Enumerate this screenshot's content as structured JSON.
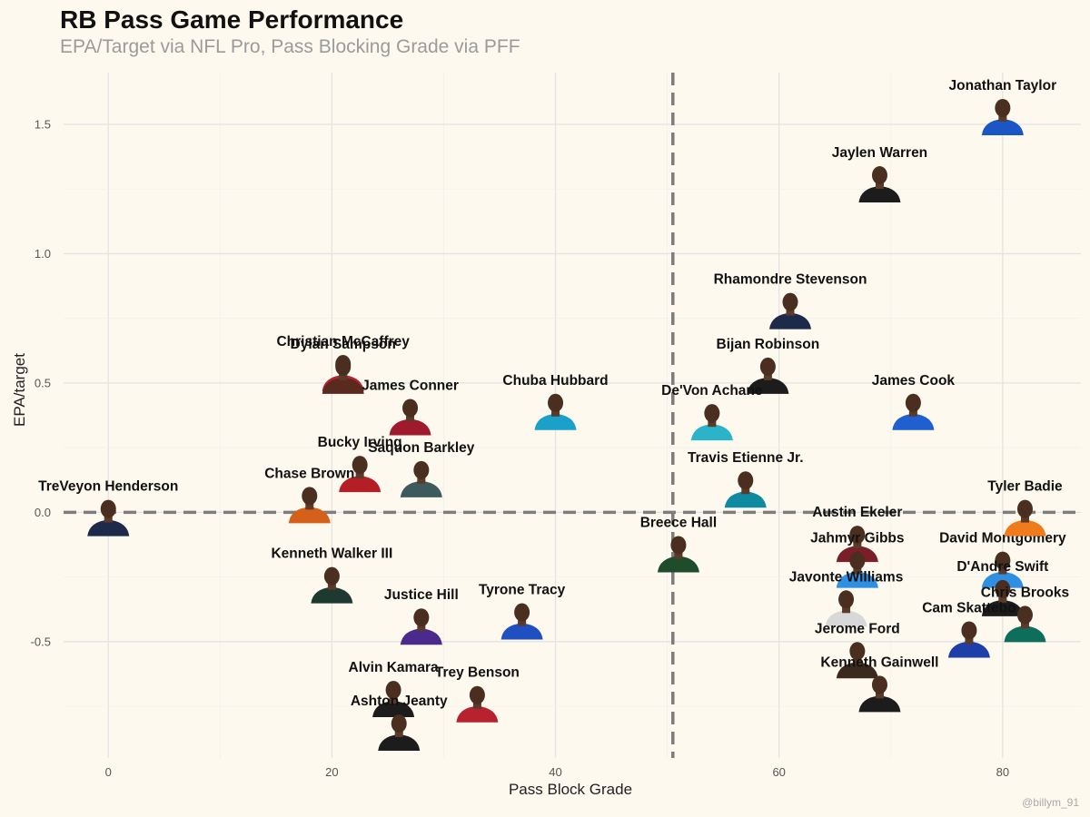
{
  "chart_data": {
    "type": "scatter",
    "title": "RB Pass Game Performance",
    "subtitle": "EPA/Target via NFL Pro, Pass Blocking Grade via PFF",
    "xlabel": "Pass Block Grade",
    "ylabel": "EPA/target",
    "xlim": [
      -4,
      87
    ],
    "ylim": [
      -0.95,
      1.7
    ],
    "xticks": [
      0,
      20,
      40,
      60,
      80
    ],
    "yticks": [
      -0.5,
      0.0,
      0.5,
      1.0,
      1.5
    ],
    "ytick_labels": [
      "-0.5",
      "0.0",
      "0.5",
      "1.0",
      "1.5"
    ],
    "reference_lines": {
      "vertical_x": 50.5,
      "horizontal_y": 0.0
    },
    "grid": true,
    "credit": "@billym_91",
    "points": [
      {
        "name": "Jonathan Taylor",
        "x": 80,
        "y": 1.5,
        "color": "#1a56c4"
      },
      {
        "name": "Jaylen Warren",
        "x": 69,
        "y": 1.24,
        "color": "#1c1c1c"
      },
      {
        "name": "Rhamondre Stevenson",
        "x": 61,
        "y": 0.75,
        "color": "#1e2a4a"
      },
      {
        "name": "Bijan Robinson",
        "x": 59,
        "y": 0.5,
        "color": "#1c1c1c"
      },
      {
        "name": "James Cook",
        "x": 72,
        "y": 0.36,
        "color": "#1f5fd0"
      },
      {
        "name": "De'Von Achane",
        "x": 54,
        "y": 0.32,
        "color": "#2bb3c9"
      },
      {
        "name": "Travis Etienne Jr.",
        "x": 57,
        "y": 0.06,
        "color": "#0f8aa0"
      },
      {
        "name": "David Montgomery",
        "x": 80,
        "y": -0.25,
        "color": "#2f8fe0"
      },
      {
        "name": "Tyler Badie",
        "x": 82,
        "y": -0.05,
        "color": "#f07b1d"
      },
      {
        "name": "D'Andre Swift",
        "x": 80,
        "y": -0.36,
        "color": "#1c1c1c"
      },
      {
        "name": "Chris Brooks",
        "x": 82,
        "y": -0.46,
        "color": "#0d6e5c"
      },
      {
        "name": "Cam Skattebo",
        "x": 77,
        "y": -0.52,
        "color": "#1e3ea8"
      },
      {
        "name": "Austin Ekeler",
        "x": 67,
        "y": -0.15,
        "color": "#7a1e28"
      },
      {
        "name": "Jahmyr Gibbs",
        "x": 67,
        "y": -0.25,
        "color": "#2f8fe0"
      },
      {
        "name": "Javonte Williams",
        "x": 66,
        "y": -0.4,
        "color": "#d8d8d8"
      },
      {
        "name": "Jerome Ford",
        "x": 67,
        "y": -0.6,
        "color": "#3a2a1e"
      },
      {
        "name": "Kenneth Gainwell",
        "x": 69,
        "y": -0.73,
        "color": "#1c1c1c"
      },
      {
        "name": "Breece Hall",
        "x": 51,
        "y": -0.19,
        "color": "#1f4d2c"
      },
      {
        "name": "Chuba Hubbard",
        "x": 40,
        "y": 0.36,
        "color": "#1ba0c9"
      },
      {
        "name": "Christian McCaffrey",
        "x": 21,
        "y": 0.51,
        "color": "#b8222f"
      },
      {
        "name": "James Conner",
        "x": 27,
        "y": 0.34,
        "color": "#9e1a2c"
      },
      {
        "name": "Dylan Sampson",
        "x": 21,
        "y": 0.5,
        "color": "#5a2a1e"
      },
      {
        "name": "Bucky Irving",
        "x": 22.5,
        "y": 0.12,
        "color": "#b51e24"
      },
      {
        "name": "Saquon Barkley",
        "x": 28,
        "y": 0.1,
        "color": "#3d5a5c"
      },
      {
        "name": "Chase Brown",
        "x": 18,
        "y": 0.0,
        "color": "#d4601a"
      },
      {
        "name": "TreVeyon Henderson",
        "x": 0,
        "y": -0.05,
        "color": "#1e2a4a"
      },
      {
        "name": "Kenneth Walker III",
        "x": 20,
        "y": -0.31,
        "color": "#1e3a30"
      },
      {
        "name": "Justice Hill",
        "x": 28,
        "y": -0.47,
        "color": "#4a2b8c"
      },
      {
        "name": "Tyrone Tracy",
        "x": 37,
        "y": -0.45,
        "color": "#1f4fc0"
      },
      {
        "name": "Alvin Kamara",
        "x": 25.5,
        "y": -0.75,
        "color": "#1c1c1c"
      },
      {
        "name": "Trey Benson",
        "x": 33,
        "y": -0.77,
        "color": "#b8222f"
      },
      {
        "name": "Ashton Jeanty",
        "x": 26,
        "y": -0.88,
        "color": "#1c1c1c"
      }
    ]
  }
}
